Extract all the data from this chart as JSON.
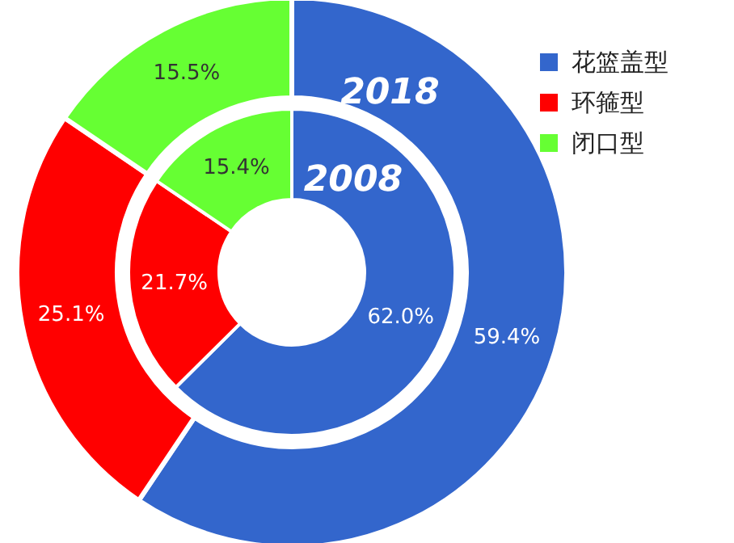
{
  "chart_data": {
    "type": "donut",
    "categories": [
      "花篮盖型",
      "环箍型",
      "闭口型"
    ],
    "colors": [
      "#3366cc",
      "#ff0000",
      "#66ff33"
    ],
    "series": [
      {
        "name": "2018",
        "values": [
          59.4,
          25.1,
          15.5
        ],
        "value_labels": [
          "59.4%",
          "25.1%",
          "15.5%"
        ]
      },
      {
        "name": "2008",
        "values": [
          62.0,
          21.7,
          15.4
        ],
        "value_labels": [
          "62.0%",
          "21.7%",
          "15.4%"
        ]
      }
    ],
    "legend": "top right"
  }
}
